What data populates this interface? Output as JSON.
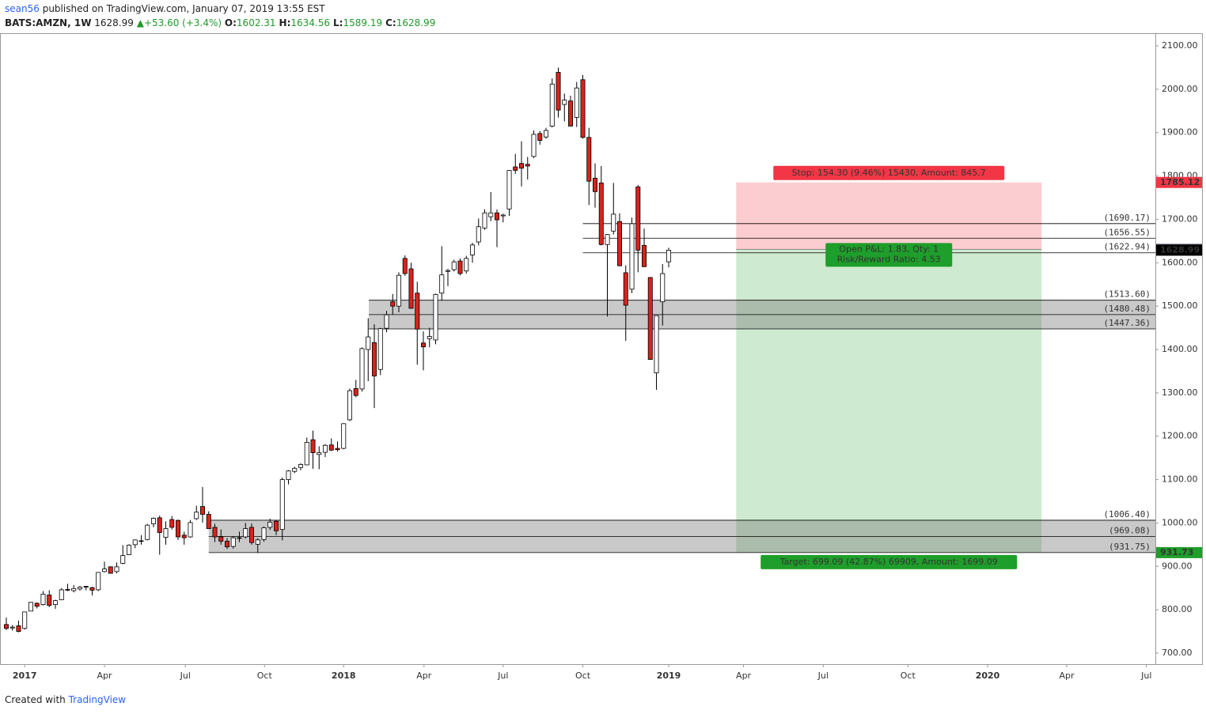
{
  "chart_data": {
    "type": "candlestick",
    "header": {
      "author": "sean56",
      "published": "published on TradingView.com, January 07, 2019 13:55 EST",
      "symbol": "BATS:AMZN, 1W",
      "last": 1628.99,
      "change": "+53.60 (+3.4%)",
      "ohlc": [
        {
          "key": "O:",
          "value": 1602.31
        },
        {
          "key": "H:",
          "value": 1634.56
        },
        {
          "key": "L:",
          "value": 1589.19
        },
        {
          "key": "C:",
          "value": 1628.99
        }
      ]
    },
    "footer": {
      "created": "Created with",
      "brand": "TradingView"
    },
    "up_color": "#ffffff",
    "down_color": "#d8231b",
    "outline_color": "#000000",
    "x": [
      0,
      1,
      2,
      3,
      4,
      5,
      6,
      7,
      8,
      9,
      10,
      11,
      12,
      13,
      14,
      15,
      16,
      17,
      18,
      19,
      20,
      21,
      22,
      23,
      24,
      25,
      26,
      27,
      28,
      29,
      30,
      31,
      32,
      33,
      34,
      35,
      36,
      37,
      38,
      39,
      40,
      41,
      42,
      43,
      44,
      45,
      46,
      47,
      48,
      49,
      50,
      51,
      52,
      53,
      54,
      55,
      56,
      57,
      58,
      59,
      60,
      61,
      62,
      63,
      64,
      65,
      66,
      67,
      68,
      69,
      70,
      71,
      72,
      73,
      74,
      75,
      76,
      77,
      78,
      79,
      80,
      81,
      82,
      83,
      84,
      85,
      86,
      87,
      88,
      89,
      90,
      91,
      92,
      93,
      94,
      95,
      96,
      97,
      98,
      99,
      100,
      101,
      102,
      103,
      104,
      105,
      106,
      107,
      108
    ],
    "open": [
      766,
      758,
      763,
      757,
      797,
      815,
      812,
      834,
      812,
      823,
      847,
      844,
      848,
      854,
      851,
      846,
      888,
      899,
      888,
      907,
      927,
      950,
      958,
      962,
      998,
      1012,
      967,
      1008,
      1006,
      972,
      968,
      1010,
      1038,
      1020,
      990,
      968,
      958,
      946,
      966,
      968,
      990,
      951,
      962,
      990,
      1004,
      985,
      1100,
      1119,
      1128,
      1134,
      1192,
      1158,
      1163,
      1180,
      1172,
      1172,
      1238,
      1310,
      1309,
      1400,
      1416,
      1354,
      1449,
      1510,
      1500,
      1610,
      1586,
      1530,
      1415,
      1425,
      1422,
      1530,
      1580,
      1584,
      1604,
      1581,
      1618,
      1648,
      1680,
      1706,
      1715,
      1708,
      1724,
      1821,
      1829,
      1827,
      1845,
      1898,
      1890,
      1915,
      2039,
      1965,
      1973,
      1935,
      2022,
      1889,
      1795,
      1784,
      1642,
      1673,
      1695,
      1577,
      1539,
      1775,
      1640,
      1566,
      1346,
      1510,
      1602.31
    ],
    "high": [
      782,
      765,
      775,
      795,
      818,
      817,
      843,
      845,
      823,
      850,
      860,
      857,
      855,
      855,
      853,
      887,
      911,
      900,
      909,
      949,
      951,
      962,
      972,
      998,
      1013,
      1017,
      1004,
      1016,
      1008,
      980,
      1007,
      1040,
      1083,
      1027,
      998,
      985,
      965,
      969,
      980,
      1000,
      999,
      965,
      992,
      1010,
      1007,
      1105,
      1122,
      1130,
      1138,
      1197,
      1213,
      1177,
      1182,
      1195,
      1188,
      1230,
      1310,
      1330,
      1405,
      1472,
      1458,
      1450,
      1489,
      1528,
      1578,
      1617,
      1600,
      1556,
      1442,
      1450,
      1529,
      1638,
      1586,
      1607,
      1610,
      1616,
      1646,
      1702,
      1723,
      1763,
      1723,
      1713,
      1813,
      1851,
      1880,
      1844,
      1905,
      1904,
      1911,
      2025,
      2050,
      1990,
      1985,
      2017,
      2033,
      1911,
      1829,
      1823,
      1666,
      1784,
      1714,
      1594,
      1704,
      1779,
      1679,
      1567,
      1473,
      1597,
      1634.56
    ],
    "low": [
      753,
      752,
      748,
      754,
      797,
      803,
      810,
      806,
      802,
      822,
      843,
      840,
      844,
      845,
      833,
      843,
      886,
      885,
      884,
      905,
      926,
      942,
      950,
      960,
      990,
      927,
      950,
      985,
      961,
      950,
      966,
      1007,
      1001,
      987,
      956,
      950,
      940,
      941,
      956,
      964,
      950,
      931,
      957,
      984,
      972,
      960,
      1089,
      1115,
      1122,
      1133,
      1125,
      1124,
      1152,
      1166,
      1165,
      1170,
      1235,
      1290,
      1303,
      1327,
      1265,
      1341,
      1440,
      1480,
      1486,
      1570,
      1494,
      1365,
      1352,
      1405,
      1412,
      1513,
      1546,
      1580,
      1571,
      1575,
      1600,
      1640,
      1676,
      1696,
      1636,
      1693,
      1708,
      1805,
      1776,
      1792,
      1841,
      1872,
      1886,
      1912,
      1935,
      1926,
      1915,
      1913,
      1886,
      1733,
      1727,
      1640,
      1476,
      1665,
      1592,
      1420,
      1530,
      1578,
      1590,
      1377,
      1307,
      1455,
      1589.19
    ],
    "close": [
      757,
      760,
      750,
      795,
      817,
      808,
      836,
      810,
      821,
      846,
      845,
      849,
      852,
      852,
      845,
      886,
      894,
      884,
      899,
      925,
      949,
      961,
      959,
      995,
      1011,
      978,
      987,
      990,
      968,
      966,
      1001,
      1025,
      1020,
      987,
      968,
      958,
      945,
      966,
      965,
      987,
      955,
      961,
      989,
      1002,
      982,
      1100,
      1120,
      1126,
      1135,
      1186,
      1162,
      1162,
      1179,
      1168,
      1169,
      1229,
      1305,
      1294,
      1402,
      1429,
      1339,
      1448,
      1480,
      1500,
      1571,
      1575,
      1495,
      1447,
      1406,
      1430,
      1527,
      1572,
      1582,
      1602,
      1575,
      1610,
      1641,
      1683,
      1715,
      1715,
      1699,
      1710,
      1813,
      1813,
      1818,
      1823,
      1896,
      1882,
      1905,
      2012,
      1952,
      1975,
      1915,
      2003,
      1889,
      1788,
      1764,
      1642,
      1665,
      1712,
      1593,
      1502,
      1690,
      1629,
      1591,
      1377,
      1478,
      1575,
      1628.99
    ],
    "xlim": [
      -1.03,
      187.35
    ],
    "xticks": [
      {
        "value": 3,
        "label": "2017"
      },
      {
        "value": 16,
        "label": "Apr"
      },
      {
        "value": 29.2,
        "label": "Jul"
      },
      {
        "value": 42.1,
        "label": "Oct"
      },
      {
        "value": 55,
        "label": "2018"
      },
      {
        "value": 68.1,
        "label": "Apr"
      },
      {
        "value": 81,
        "label": "Jul"
      },
      {
        "value": 94,
        "label": "Oct"
      },
      {
        "value": 108,
        "label": "2019"
      },
      {
        "value": 120.2,
        "label": "Apr"
      },
      {
        "value": 133.2,
        "label": "Jul"
      },
      {
        "value": 147,
        "label": "Oct"
      },
      {
        "value": 160,
        "label": "2020"
      },
      {
        "value": 172.9,
        "label": "Apr"
      },
      {
        "value": 185.9,
        "label": "Jul"
      }
    ],
    "ylim": [
      674.5,
      2129.2
    ],
    "yticks": [
      {
        "value": 700,
        "label": "700.00"
      },
      {
        "value": 800,
        "label": "800.00"
      },
      {
        "value": 900,
        "label": "900.00"
      },
      {
        "value": 1000,
        "label": "1000.00"
      },
      {
        "value": 1100,
        "label": "1100.00"
      },
      {
        "value": 1200,
        "label": "1200.00"
      },
      {
        "value": 1300,
        "label": "1300.00"
      },
      {
        "value": 1400,
        "label": "1400.00"
      },
      {
        "value": 1500,
        "label": "1500.00"
      },
      {
        "value": 1600,
        "label": "1600.00"
      },
      {
        "value": 1700,
        "label": "1700.00"
      },
      {
        "value": 1800,
        "label": "1800.00"
      },
      {
        "value": 1900,
        "label": "1900.00"
      },
      {
        "value": 2000,
        "label": "2000.00"
      },
      {
        "value": 2100,
        "label": "2100.00"
      }
    ],
    "zones": [
      {
        "from": 1447.36,
        "to": 1513.6,
        "x_start": 59.1
      },
      {
        "from": 931.75,
        "to": 1006.4,
        "x_start": 33
      }
    ],
    "levels": [
      {
        "value": 1690.17,
        "label": "(1690.17)",
        "x_start": 94
      },
      {
        "value": 1656.55,
        "label": "(1656.55)",
        "x_start": 94
      },
      {
        "value": 1622.94,
        "label": "(1622.94)",
        "x_start": 94
      },
      {
        "value": 1513.6,
        "label": "(1513.60)",
        "x_start": 59.1
      },
      {
        "value": 1480.48,
        "label": "(1480.48)",
        "x_start": 59.1
      },
      {
        "value": 1447.36,
        "label": "(1447.36)",
        "x_start": 59.1
      },
      {
        "value": 1006.4,
        "label": "(1006.40)",
        "x_start": 33
      },
      {
        "value": 969.08,
        "label": "(969.08)",
        "x_start": 33
      },
      {
        "value": 931.75,
        "label": "(931.75)",
        "x_start": 33
      }
    ],
    "position": {
      "entry": 1630.82,
      "stop": 1785.12,
      "target": 931.73,
      "x_start": 119,
      "x_end": 168.8,
      "stop_label": "Stop: 154.30 (9.46%) 15430, Amount: 845.7",
      "pnl_label": "Open P&L: 1.83, Qty: 1",
      "rr_label": "Risk/Reward Ratio: 4.53",
      "target_label": "Target: 699.09 (42.87%) 69909, Amount: 1699.09",
      "stop_color": "#f23645",
      "target_color": "#1e9e2a"
    },
    "price_tags": [
      {
        "value": 1785.12,
        "color": "#f23645"
      },
      {
        "value": 1630.82,
        "color": "#5d606b"
      },
      {
        "value": 1628.99,
        "color": "#000000"
      },
      {
        "value": 931.73,
        "color": "#1e9e2a"
      }
    ]
  }
}
